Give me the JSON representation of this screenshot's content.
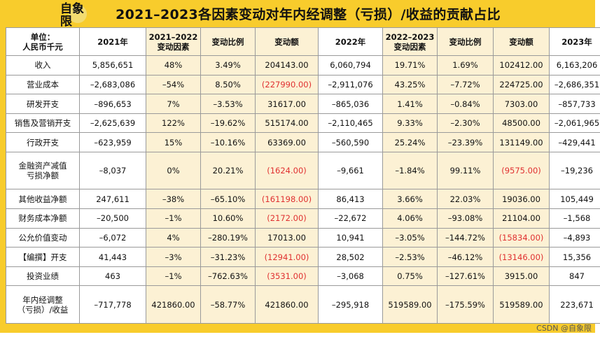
{
  "logo": "自象限",
  "title": "2021–2023各因素变动对年内经调整（亏损）/收益的贡献占比",
  "headers": [
    "单位：\n人民币千元",
    "2021年",
    "2021–2022\n变动因素",
    "变动比例",
    "变动额",
    "2022年",
    "2022–2023\n变动因素",
    "变动比例",
    "变动额",
    "2023年"
  ],
  "rows": [
    [
      "收入",
      "5,856,651",
      "48%",
      "3.49%",
      "204143.00",
      "6,060,794",
      "19.71%",
      "1.69%",
      "102412.00",
      "6,163,206"
    ],
    [
      "营业成本",
      "–2,683,086",
      "–54%",
      "8.50%",
      "(227990.00)",
      "–2,911,076",
      "43.25%",
      "–7.72%",
      "224725.00",
      "–2,686,351"
    ],
    [
      "研发开支",
      "–896,653",
      "7%",
      "–3.53%",
      "31617.00",
      "–865,036",
      "1.41%",
      "–0.84%",
      "7303.00",
      "–857,733"
    ],
    [
      "销售及营销开支",
      "–2,625,639",
      "122%",
      "–19.62%",
      "515174.00",
      "–2,110,465",
      "9.33%",
      "–2.30%",
      "48500.00",
      "–2,061,965"
    ],
    [
      "行政开支",
      "–623,959",
      "15%",
      "–10.16%",
      "63369.00",
      "–560,590",
      "25.24%",
      "–23.39%",
      "131149.00",
      "–429,441"
    ],
    [
      "金融资产减值\n亏损净额",
      "–8,037",
      "0%",
      "20.21%",
      "(1624.00)",
      "–9,661",
      "–1.84%",
      "99.11%",
      "(9575.00)",
      "–19,236"
    ],
    [
      "其他收益净额",
      "247,611",
      "–38%",
      "–65.10%",
      "(161198.00)",
      "86,413",
      "3.66%",
      "22.03%",
      "19036.00",
      "105,449"
    ],
    [
      "财务成本净额",
      "–20,500",
      "–1%",
      "10.60%",
      "(2172.00)",
      "–22,672",
      "4.06%",
      "–93.08%",
      "21104.00",
      "–1,568"
    ],
    [
      "公允价值变动",
      "–6,072",
      "4%",
      "–280.19%",
      "17013.00",
      "10,941",
      "–3.05%",
      "–144.72%",
      "(15834.00)",
      "–4,893"
    ],
    [
      "【编撰】开支",
      "41,443",
      "–3%",
      "–31.23%",
      "(12941.00)",
      "28,502",
      "–2.53%",
      "–46.12%",
      "(13146.00)",
      "15,356"
    ],
    [
      "投资业绩",
      "463",
      "–1%",
      "–762.63%",
      "(3531.00)",
      "–3,068",
      "0.75%",
      "–127.61%",
      "3915.00",
      "847"
    ],
    [
      "年内经调整\n（亏损）/收益",
      "–717,778",
      "421860.00",
      "–58.77%",
      "421860.00",
      "–295,918",
      "519589.00",
      "–175.59%",
      "519589.00",
      "223,671"
    ]
  ],
  "watermark": "CSDN @自象限"
}
